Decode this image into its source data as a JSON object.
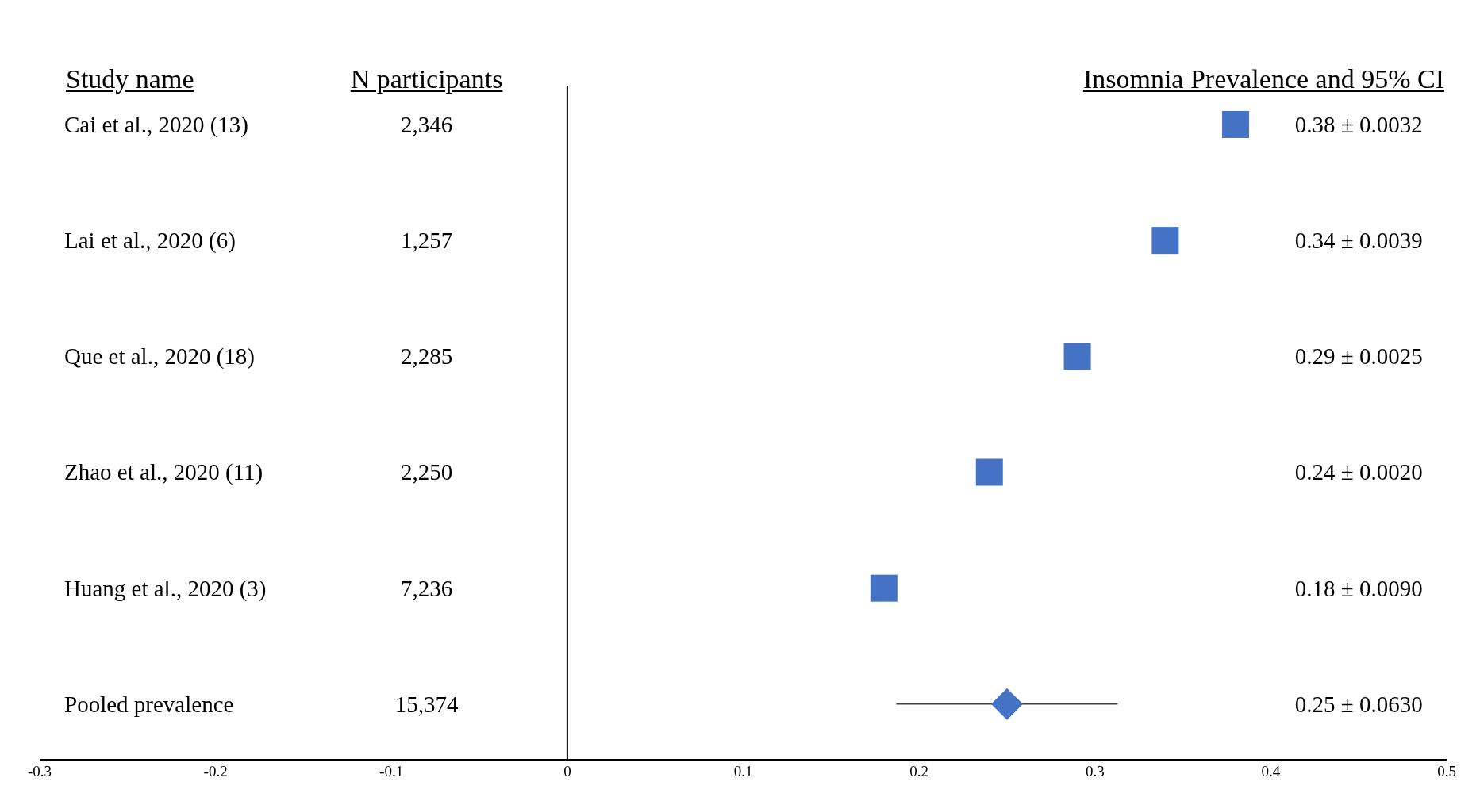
{
  "chart_data": {
    "type": "scatter",
    "orientation": "horizontal",
    "categories": [
      "Cai et al., 2020 (13)",
      "Lai et al., 2020 (6)",
      "Que et al., 2020 (18)",
      "Zhao et al., 2020 (11)",
      "Huang et al., 2020 (3)",
      "Pooled prevalence"
    ],
    "series": [
      {
        "color": "#4472c4",
        "marker": "square",
        "values": [
          0.38,
          0.34,
          0.29,
          0.24,
          0.18,
          null
        ]
      },
      {
        "color": "#4472c4",
        "marker": "diamond",
        "values": [
          null,
          null,
          null,
          null,
          null,
          0.25
        ],
        "errors": [
          null,
          null,
          null,
          null,
          null,
          0.063
        ]
      }
    ],
    "annotations": [
      "Study name",
      "N participants",
      "Insomnia Prevalence and 95% CI",
      "2,346",
      "1,257",
      "2,285",
      "2,250",
      "7,236",
      "15,374",
      "0.38 ± 0.0032",
      "0.34 ± 0.0039",
      "0.29 ± 0.0025",
      "0.24 ± 0.0020",
      "0.18 ± 0.0090",
      "0.25 ± 0.0630"
    ],
    "xlim": [
      -0.3,
      0.5
    ],
    "xticks": [
      -0.3,
      -0.2,
      -0.1,
      0,
      0.1,
      0.2,
      0.3,
      0.4,
      0.5
    ],
    "ref_lines": [
      {
        "axis": "x",
        "value": 0,
        "color": "#000000"
      }
    ],
    "grid": false,
    "legend": false,
    "tick_labels": "x"
  }
}
